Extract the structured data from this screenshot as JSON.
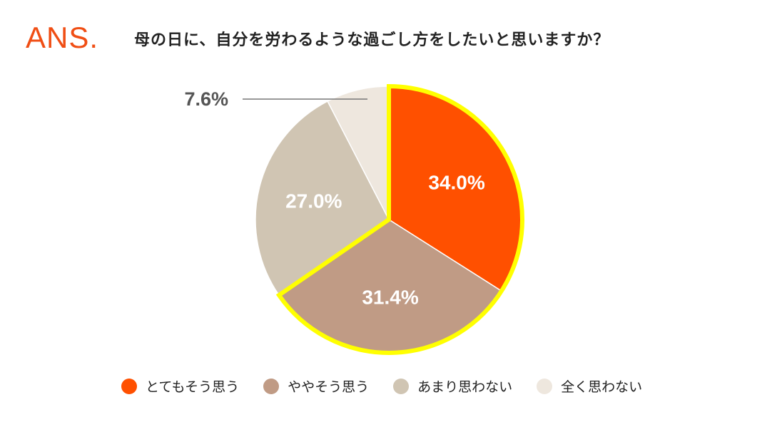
{
  "brand": {
    "logo": "ANS."
  },
  "title": "母の日に、自分を労わるような過ごし方をしたいと思いますか？",
  "colors": {
    "accent": "#f04e14",
    "highlight": "#ffff00"
  },
  "chart_data": {
    "type": "pie",
    "title": "母の日に、自分を労わるような過ごし方をしたいと思いますか？",
    "slices": [
      {
        "label": "とてもそう思う",
        "value": 34.0,
        "display": "34.0%",
        "color": "#ff5000",
        "highlighted": true
      },
      {
        "label": "ややそう思う",
        "value": 31.4,
        "display": "31.4%",
        "color": "#c09b85",
        "highlighted": true
      },
      {
        "label": "あまり思わない",
        "value": 27.0,
        "display": "27.0%",
        "color": "#d0c5b3",
        "highlighted": false
      },
      {
        "label": "全く思わない",
        "value": 7.6,
        "display": "7.6%",
        "color": "#eee7de",
        "highlighted": false
      }
    ],
    "start": "12 o'clock",
    "direction": "clockwise",
    "legend_position": "bottom"
  }
}
